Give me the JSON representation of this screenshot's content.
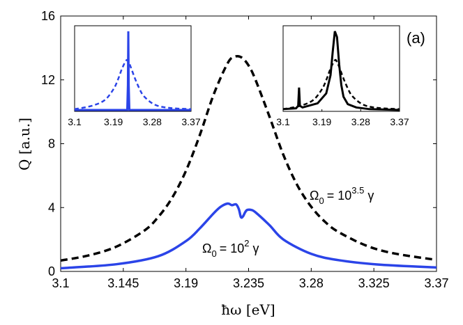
{
  "chart_data": {
    "type": "line",
    "panel_label": "(a)",
    "xlabel": "ħω [eV]",
    "ylabel": "Q [a.u.]",
    "xlim": [
      3.1,
      3.37
    ],
    "ylim": [
      0,
      16
    ],
    "xticks": [
      3.1,
      3.145,
      3.19,
      3.235,
      3.28,
      3.325,
      3.37
    ],
    "xtick_labels": [
      "3.1",
      "3.145",
      "3.19",
      "3.235",
      "3.28",
      "3.325",
      "3.37"
    ],
    "yticks": [
      0,
      4,
      8,
      12,
      16
    ],
    "ytick_labels": [
      "0",
      "4",
      "8",
      "12",
      "16"
    ],
    "series": [
      {
        "name": "Ω0 = 10^3.5 γ",
        "style": "dashed",
        "color": "#000000",
        "x": [
          3.1,
          3.12,
          3.14,
          3.16,
          3.17,
          3.18,
          3.19,
          3.2,
          3.21,
          3.22,
          3.225,
          3.23,
          3.235,
          3.24,
          3.25,
          3.26,
          3.27,
          3.28,
          3.29,
          3.3,
          3.32,
          3.34,
          3.37
        ],
        "y": [
          0.68,
          1.0,
          1.55,
          2.55,
          3.4,
          4.6,
          6.3,
          8.55,
          11.1,
          13.05,
          13.45,
          13.4,
          12.9,
          12.0,
          9.7,
          7.3,
          5.4,
          4.05,
          3.1,
          2.45,
          1.6,
          1.12,
          0.72
        ]
      },
      {
        "name": "Ω0 = 10^2 γ",
        "style": "solid",
        "color": "#2b44e8",
        "x": [
          3.1,
          3.14,
          3.17,
          3.19,
          3.2,
          3.21,
          3.215,
          3.22,
          3.223,
          3.226,
          3.228,
          3.2295,
          3.231,
          3.2325,
          3.234,
          3.237,
          3.24,
          3.25,
          3.26,
          3.28,
          3.3,
          3.33,
          3.37
        ],
        "y": [
          0.2,
          0.45,
          0.95,
          1.9,
          2.7,
          3.65,
          4.05,
          4.25,
          4.15,
          4.2,
          3.9,
          3.4,
          3.45,
          3.7,
          3.85,
          3.85,
          3.7,
          2.9,
          2.0,
          1.1,
          0.7,
          0.42,
          0.25
        ]
      }
    ],
    "annotations": [
      {
        "name": "omega-large",
        "base": "Ω",
        "sub": "0",
        "mid": "=  10",
        "sup": "3.5",
        "tail": " γ"
      },
      {
        "name": "omega-small",
        "base": "Ω",
        "sub": "0",
        "mid": "=  10",
        "sup": "2",
        "tail": " γ"
      }
    ],
    "insets": [
      {
        "name": "inset-left",
        "xlim": [
          3.1,
          3.37
        ],
        "xtick_labels": [
          "3.1",
          "3.19",
          "3.28",
          "3.37"
        ],
        "xticks": [
          3.1,
          3.19,
          3.28,
          3.37
        ],
        "ylim": [
          0,
          1
        ],
        "series": [
          {
            "style": "dashed",
            "color": "#2b44e8",
            "x": [
              3.1,
              3.14,
              3.17,
              3.19,
              3.2,
              3.21,
              3.22,
              3.225,
              3.23,
              3.24,
              3.25,
              3.26,
              3.28,
              3.3,
              3.33,
              3.37
            ],
            "y": [
              0.01,
              0.05,
              0.12,
              0.25,
              0.36,
              0.5,
              0.6,
              0.58,
              0.52,
              0.38,
              0.26,
              0.17,
              0.08,
              0.04,
              0.02,
              0.01
            ]
          },
          {
            "style": "solid",
            "color": "#2b44e8",
            "x": [
              3.1,
              3.222,
              3.2235,
              3.2245,
              3.2255,
              3.227,
              3.37
            ],
            "y": [
              0.0,
              0.0,
              0.3,
              0.95,
              0.3,
              0.0,
              0.0
            ]
          }
        ]
      },
      {
        "name": "inset-right",
        "xlim": [
          3.1,
          3.37
        ],
        "xtick_labels": [
          "3.1",
          "3.19",
          "3.28",
          "3.37"
        ],
        "xticks": [
          3.1,
          3.19,
          3.28,
          3.37
        ],
        "ylim": [
          0,
          1
        ],
        "series": [
          {
            "style": "dashed",
            "color": "#000000",
            "x": [
              3.1,
              3.14,
              3.17,
              3.19,
              3.2,
              3.21,
              3.22,
              3.225,
              3.23,
              3.24,
              3.25,
              3.26,
              3.28,
              3.3,
              3.33,
              3.37
            ],
            "y": [
              0.01,
              0.05,
              0.12,
              0.25,
              0.36,
              0.5,
              0.6,
              0.58,
              0.52,
              0.38,
              0.26,
              0.17,
              0.08,
              0.04,
              0.02,
              0.01
            ]
          },
          {
            "style": "solid",
            "color": "#000000",
            "x": [
              3.1,
              3.13,
              3.135,
              3.137,
              3.139,
              3.145,
              3.18,
              3.2,
              3.21,
              3.215,
              3.22,
              3.225,
              3.23,
              3.235,
              3.24,
              3.25,
              3.27,
              3.3,
              3.37
            ],
            "y": [
              0.01,
              0.02,
              0.05,
              0.27,
              0.05,
              0.03,
              0.08,
              0.2,
              0.42,
              0.7,
              0.95,
              0.88,
              0.55,
              0.3,
              0.16,
              0.07,
              0.03,
              0.01,
              0.0
            ]
          }
        ]
      }
    ]
  }
}
